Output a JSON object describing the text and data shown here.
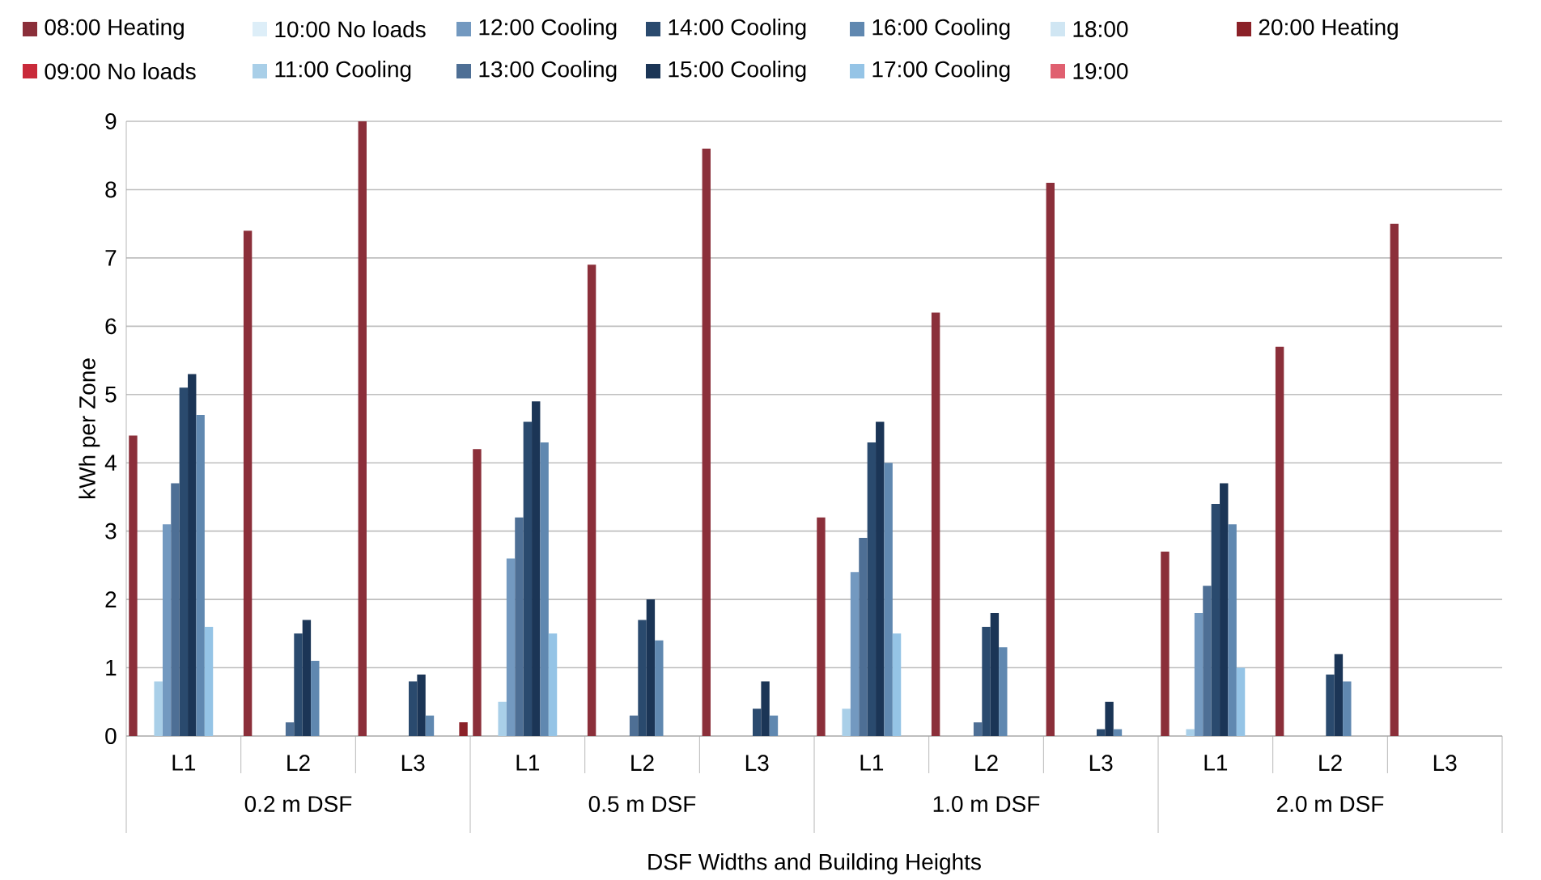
{
  "chart_data": {
    "type": "bar",
    "xlabel": "DSF Widths and Building Heights",
    "ylabel": "kWh per Zone",
    "categories": [
      "L1",
      "L2",
      "L3",
      "L1",
      "L2",
      "L3",
      "L1",
      "L2",
      "L3",
      "L1",
      "L2",
      "L3"
    ],
    "annotations": [
      "0.2 m DSF",
      "0.5 m DSF",
      "1.0 m DSF",
      "2.0 m DSF"
    ],
    "ylim": [
      0,
      9
    ],
    "yticks": [
      0,
      1,
      2,
      3,
      4,
      5,
      6,
      7,
      8,
      9
    ],
    "grid": "y",
    "legend": "top",
    "series": [
      {
        "name": "08:00 Heating",
        "color": "#8b2f3a",
        "values": [
          4.4,
          7.4,
          9.0,
          4.2,
          6.9,
          8.6,
          3.2,
          6.2,
          8.1,
          2.7,
          5.7,
          7.5
        ]
      },
      {
        "name": "09:00 No loads",
        "color": "#c92a3a",
        "values": [
          null,
          null,
          null,
          null,
          null,
          null,
          null,
          null,
          null,
          null,
          null,
          null
        ]
      },
      {
        "name": "10:00 No loads",
        "color": "#ddeef8",
        "values": [
          null,
          null,
          null,
          null,
          null,
          null,
          null,
          null,
          null,
          null,
          null,
          null
        ]
      },
      {
        "name": "11:00 Cooling",
        "color": "#a9cfe8",
        "values": [
          0.8,
          null,
          null,
          0.5,
          null,
          null,
          0.4,
          null,
          null,
          0.1,
          null,
          null
        ]
      },
      {
        "name": "12:00 Cooling",
        "color": "#7399c0",
        "values": [
          3.1,
          null,
          null,
          2.6,
          null,
          null,
          2.4,
          null,
          null,
          1.8,
          null,
          null
        ]
      },
      {
        "name": "13:00 Cooling",
        "color": "#4e6f95",
        "values": [
          3.7,
          0.2,
          null,
          3.2,
          0.3,
          null,
          2.9,
          0.2,
          null,
          2.2,
          null,
          null
        ]
      },
      {
        "name": "14:00 Cooling",
        "color": "#2a4a6e",
        "values": [
          5.1,
          1.5,
          0.8,
          4.6,
          1.7,
          0.4,
          4.3,
          1.6,
          0.1,
          3.4,
          0.9,
          null
        ]
      },
      {
        "name": "15:00 Cooling",
        "color": "#1b3556",
        "values": [
          5.3,
          1.7,
          0.9,
          4.9,
          2.0,
          0.8,
          4.6,
          1.8,
          0.5,
          3.7,
          1.2,
          null
        ]
      },
      {
        "name": "16:00 Cooling",
        "color": "#6088b0",
        "values": [
          4.7,
          1.1,
          0.3,
          4.3,
          1.4,
          0.3,
          4.0,
          1.3,
          0.1,
          3.1,
          0.8,
          null
        ]
      },
      {
        "name": "17:00 Cooling",
        "color": "#95c4e6",
        "values": [
          1.6,
          null,
          null,
          1.5,
          null,
          null,
          1.5,
          null,
          null,
          1.0,
          null,
          null
        ]
      },
      {
        "name": "18:00",
        "color": "#d0e6f3",
        "values": [
          null,
          null,
          null,
          null,
          null,
          null,
          null,
          null,
          null,
          null,
          null,
          null
        ]
      },
      {
        "name": "19:00",
        "color": "#e06070",
        "values": [
          null,
          null,
          null,
          null,
          null,
          null,
          null,
          null,
          null,
          null,
          null,
          null
        ]
      },
      {
        "name": "20:00 Heating",
        "color": "#8b2128",
        "values": [
          null,
          null,
          0.2,
          null,
          null,
          null,
          null,
          null,
          null,
          null,
          null,
          null
        ]
      }
    ]
  }
}
